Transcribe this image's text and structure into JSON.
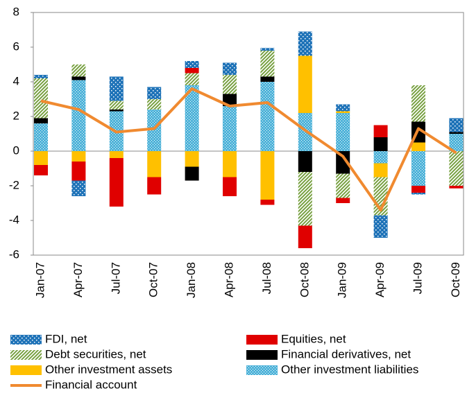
{
  "chart_data": {
    "type": "bar",
    "categories": [
      "Jan-07",
      "Apr-07",
      "Jul-07",
      "Oct-07",
      "Jan-08",
      "Apr-08",
      "Jul-08",
      "Oct-08",
      "Jan-09",
      "Apr-09",
      "Jul-09",
      "Oct-09"
    ],
    "ylim": [
      -6,
      8
    ],
    "yticks": [
      -6,
      -4,
      -2,
      0,
      2,
      4,
      6,
      8
    ],
    "stacked": true,
    "series": [
      {
        "name": "Other investment liabilities",
        "color": "#4fb3d9",
        "pattern": "cross",
        "values": [
          1.6,
          4.1,
          2.3,
          2.4,
          3.8,
          2.6,
          4.0,
          2.2,
          2.2,
          -0.7,
          -2.0,
          1.0
        ]
      },
      {
        "name": "Other investment assets",
        "color": "#ffc000",
        "pattern": "solid",
        "values": [
          -0.8,
          -0.6,
          -0.4,
          -1.5,
          -0.9,
          -1.5,
          -2.8,
          3.3,
          0.1,
          -0.8,
          0.5,
          0
        ]
      },
      {
        "name": "Financial derivatives, net",
        "color": "#000000",
        "pattern": "solid",
        "values": [
          0.3,
          0.2,
          0.1,
          0,
          -0.8,
          0.7,
          0.3,
          -1.2,
          -1.3,
          0.8,
          1.2,
          0.1
        ]
      },
      {
        "name": "Debt securities, net",
        "color": "#77a040",
        "pattern": "hatch",
        "values": [
          2.3,
          0.7,
          0.5,
          0.6,
          0.7,
          1.1,
          1.5,
          -3.1,
          -1.4,
          -2.2,
          2.1,
          -2.0
        ]
      },
      {
        "name": "Equities, net",
        "color": "#e00000",
        "pattern": "solid",
        "values": [
          -0.6,
          -1.1,
          -2.8,
          -1.0,
          0.3,
          -1.1,
          -0.3,
          -1.3,
          -0.3,
          0.7,
          -0.4,
          -0.15
        ]
      },
      {
        "name": "FDI, net",
        "color": "#1f73b8",
        "pattern": "dots",
        "values": [
          0.2,
          -0.9,
          1.4,
          0.7,
          0.4,
          0.7,
          0.15,
          1.4,
          0.4,
          -1.3,
          -0.1,
          0.8
        ]
      },
      {
        "name": "Financial account",
        "color": "#f08a30",
        "type": "line",
        "values": [
          2.9,
          2.4,
          1.1,
          1.3,
          3.6,
          2.6,
          2.8,
          1.2,
          -0.3,
          -3.4,
          1.3,
          -0.1
        ]
      }
    ]
  }
}
